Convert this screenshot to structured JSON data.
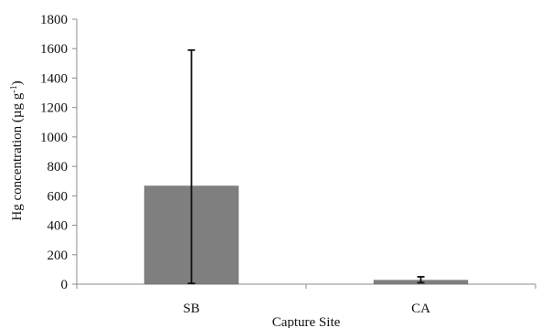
{
  "chart_data": {
    "type": "bar",
    "categories": [
      "SB",
      "CA"
    ],
    "series": [
      {
        "values": [
          667,
          27
        ],
        "error_upper": [
          1590,
          50
        ],
        "error_lower": [
          5,
          10
        ]
      }
    ],
    "title": "",
    "xlabel": "Capture Site",
    "ylabel_main": "Hg concentration (µg g",
    "ylabel_sup": "-1",
    "ylabel_close": ")",
    "ylim": [
      0,
      1800
    ],
    "yticks": [
      "0",
      "200",
      "400",
      "600",
      "800",
      "1000",
      "1200",
      "1400",
      "1600",
      "1800"
    ],
    "grid": false,
    "legend": "none",
    "colors": {
      "bar": "#7f7f7f",
      "bar_edge": "#6f6f6f",
      "error": "#111111",
      "axis": "#8c8c8c"
    }
  }
}
